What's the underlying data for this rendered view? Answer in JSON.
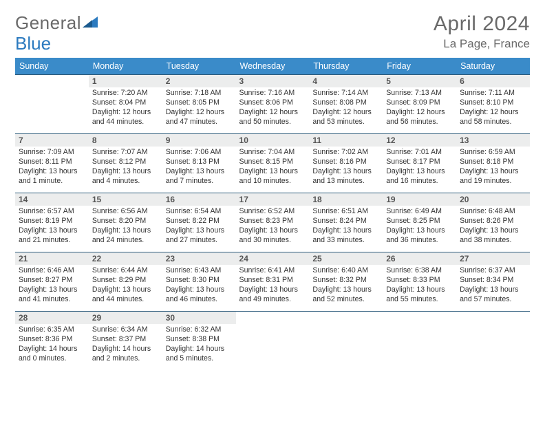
{
  "logo": {
    "text1": "General",
    "text2": "Blue"
  },
  "title": "April 2024",
  "subtitle": "La Page, France",
  "days": [
    "Sunday",
    "Monday",
    "Tuesday",
    "Wednesday",
    "Thursday",
    "Friday",
    "Saturday"
  ],
  "colors": {
    "header_bg": "#3a8bc9",
    "row_border": "#2b5a7a",
    "daynum_bg": "#eceded",
    "text": "#333333",
    "muted": "#6a6a6a"
  },
  "grid": [
    [
      {
        "n": "",
        "sr": "",
        "ss": "",
        "dl": ""
      },
      {
        "n": "1",
        "sr": "Sunrise: 7:20 AM",
        "ss": "Sunset: 8:04 PM",
        "dl": "Daylight: 12 hours and 44 minutes."
      },
      {
        "n": "2",
        "sr": "Sunrise: 7:18 AM",
        "ss": "Sunset: 8:05 PM",
        "dl": "Daylight: 12 hours and 47 minutes."
      },
      {
        "n": "3",
        "sr": "Sunrise: 7:16 AM",
        "ss": "Sunset: 8:06 PM",
        "dl": "Daylight: 12 hours and 50 minutes."
      },
      {
        "n": "4",
        "sr": "Sunrise: 7:14 AM",
        "ss": "Sunset: 8:08 PM",
        "dl": "Daylight: 12 hours and 53 minutes."
      },
      {
        "n": "5",
        "sr": "Sunrise: 7:13 AM",
        "ss": "Sunset: 8:09 PM",
        "dl": "Daylight: 12 hours and 56 minutes."
      },
      {
        "n": "6",
        "sr": "Sunrise: 7:11 AM",
        "ss": "Sunset: 8:10 PM",
        "dl": "Daylight: 12 hours and 58 minutes."
      }
    ],
    [
      {
        "n": "7",
        "sr": "Sunrise: 7:09 AM",
        "ss": "Sunset: 8:11 PM",
        "dl": "Daylight: 13 hours and 1 minute."
      },
      {
        "n": "8",
        "sr": "Sunrise: 7:07 AM",
        "ss": "Sunset: 8:12 PM",
        "dl": "Daylight: 13 hours and 4 minutes."
      },
      {
        "n": "9",
        "sr": "Sunrise: 7:06 AM",
        "ss": "Sunset: 8:13 PM",
        "dl": "Daylight: 13 hours and 7 minutes."
      },
      {
        "n": "10",
        "sr": "Sunrise: 7:04 AM",
        "ss": "Sunset: 8:15 PM",
        "dl": "Daylight: 13 hours and 10 minutes."
      },
      {
        "n": "11",
        "sr": "Sunrise: 7:02 AM",
        "ss": "Sunset: 8:16 PM",
        "dl": "Daylight: 13 hours and 13 minutes."
      },
      {
        "n": "12",
        "sr": "Sunrise: 7:01 AM",
        "ss": "Sunset: 8:17 PM",
        "dl": "Daylight: 13 hours and 16 minutes."
      },
      {
        "n": "13",
        "sr": "Sunrise: 6:59 AM",
        "ss": "Sunset: 8:18 PM",
        "dl": "Daylight: 13 hours and 19 minutes."
      }
    ],
    [
      {
        "n": "14",
        "sr": "Sunrise: 6:57 AM",
        "ss": "Sunset: 8:19 PM",
        "dl": "Daylight: 13 hours and 21 minutes."
      },
      {
        "n": "15",
        "sr": "Sunrise: 6:56 AM",
        "ss": "Sunset: 8:20 PM",
        "dl": "Daylight: 13 hours and 24 minutes."
      },
      {
        "n": "16",
        "sr": "Sunrise: 6:54 AM",
        "ss": "Sunset: 8:22 PM",
        "dl": "Daylight: 13 hours and 27 minutes."
      },
      {
        "n": "17",
        "sr": "Sunrise: 6:52 AM",
        "ss": "Sunset: 8:23 PM",
        "dl": "Daylight: 13 hours and 30 minutes."
      },
      {
        "n": "18",
        "sr": "Sunrise: 6:51 AM",
        "ss": "Sunset: 8:24 PM",
        "dl": "Daylight: 13 hours and 33 minutes."
      },
      {
        "n": "19",
        "sr": "Sunrise: 6:49 AM",
        "ss": "Sunset: 8:25 PM",
        "dl": "Daylight: 13 hours and 36 minutes."
      },
      {
        "n": "20",
        "sr": "Sunrise: 6:48 AM",
        "ss": "Sunset: 8:26 PM",
        "dl": "Daylight: 13 hours and 38 minutes."
      }
    ],
    [
      {
        "n": "21",
        "sr": "Sunrise: 6:46 AM",
        "ss": "Sunset: 8:27 PM",
        "dl": "Daylight: 13 hours and 41 minutes."
      },
      {
        "n": "22",
        "sr": "Sunrise: 6:44 AM",
        "ss": "Sunset: 8:29 PM",
        "dl": "Daylight: 13 hours and 44 minutes."
      },
      {
        "n": "23",
        "sr": "Sunrise: 6:43 AM",
        "ss": "Sunset: 8:30 PM",
        "dl": "Daylight: 13 hours and 46 minutes."
      },
      {
        "n": "24",
        "sr": "Sunrise: 6:41 AM",
        "ss": "Sunset: 8:31 PM",
        "dl": "Daylight: 13 hours and 49 minutes."
      },
      {
        "n": "25",
        "sr": "Sunrise: 6:40 AM",
        "ss": "Sunset: 8:32 PM",
        "dl": "Daylight: 13 hours and 52 minutes."
      },
      {
        "n": "26",
        "sr": "Sunrise: 6:38 AM",
        "ss": "Sunset: 8:33 PM",
        "dl": "Daylight: 13 hours and 55 minutes."
      },
      {
        "n": "27",
        "sr": "Sunrise: 6:37 AM",
        "ss": "Sunset: 8:34 PM",
        "dl": "Daylight: 13 hours and 57 minutes."
      }
    ],
    [
      {
        "n": "28",
        "sr": "Sunrise: 6:35 AM",
        "ss": "Sunset: 8:36 PM",
        "dl": "Daylight: 14 hours and 0 minutes."
      },
      {
        "n": "29",
        "sr": "Sunrise: 6:34 AM",
        "ss": "Sunset: 8:37 PM",
        "dl": "Daylight: 14 hours and 2 minutes."
      },
      {
        "n": "30",
        "sr": "Sunrise: 6:32 AM",
        "ss": "Sunset: 8:38 PM",
        "dl": "Daylight: 14 hours and 5 minutes."
      },
      {
        "n": "",
        "sr": "",
        "ss": "",
        "dl": ""
      },
      {
        "n": "",
        "sr": "",
        "ss": "",
        "dl": ""
      },
      {
        "n": "",
        "sr": "",
        "ss": "",
        "dl": ""
      },
      {
        "n": "",
        "sr": "",
        "ss": "",
        "dl": ""
      }
    ]
  ]
}
